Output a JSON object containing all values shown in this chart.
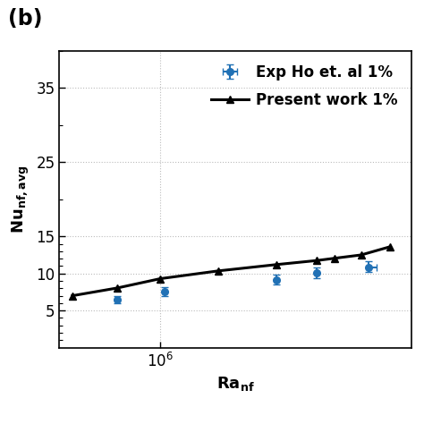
{
  "title_label": "(b)",
  "xlabel": "Ra",
  "xlabel_sub": "nf",
  "ylabel": "Nu",
  "ylabel_sub": "nf,avg",
  "ylim": [
    0,
    40
  ],
  "yticks_major": [
    5,
    10,
    15,
    25,
    35
  ],
  "yticks_minor": [
    1,
    2,
    3,
    4,
    6,
    7,
    8,
    9,
    11,
    12,
    13,
    14,
    20,
    30,
    40
  ],
  "present_work_x": [
    350000.0,
    600000.0,
    1000000.0,
    2000000.0,
    4000000.0,
    6500000.0,
    8000000.0,
    11000000.0,
    15500000.0
  ],
  "present_work_y": [
    7.0,
    8.05,
    9.3,
    10.35,
    11.2,
    11.75,
    12.05,
    12.5,
    13.6
  ],
  "exp_x": [
    600000.0,
    1050000.0,
    4000000.0,
    6500000.0,
    12000000.0
  ],
  "exp_y": [
    6.45,
    7.55,
    9.15,
    10.05,
    10.85
  ],
  "exp_yerr_lo": [
    0.45,
    0.55,
    0.6,
    0.7,
    0.65
  ],
  "exp_yerr_hi": [
    0.55,
    0.65,
    0.7,
    0.8,
    0.75
  ],
  "exp_xerr_lo": [
    0,
    0,
    0,
    0,
    0
  ],
  "exp_xerr_hi": [
    0,
    0,
    0,
    0,
    1200000.0
  ],
  "line_color": "#000000",
  "exp_color": "#2171b5",
  "legend1_label": "Exp Ho et. al 1%",
  "legend2_label": "Present work 1%",
  "background_color": "#ffffff",
  "grid_color": "#bbbbbb",
  "title_fontsize": 17,
  "label_fontsize": 13,
  "tick_fontsize": 12,
  "legend_fontsize": 12
}
